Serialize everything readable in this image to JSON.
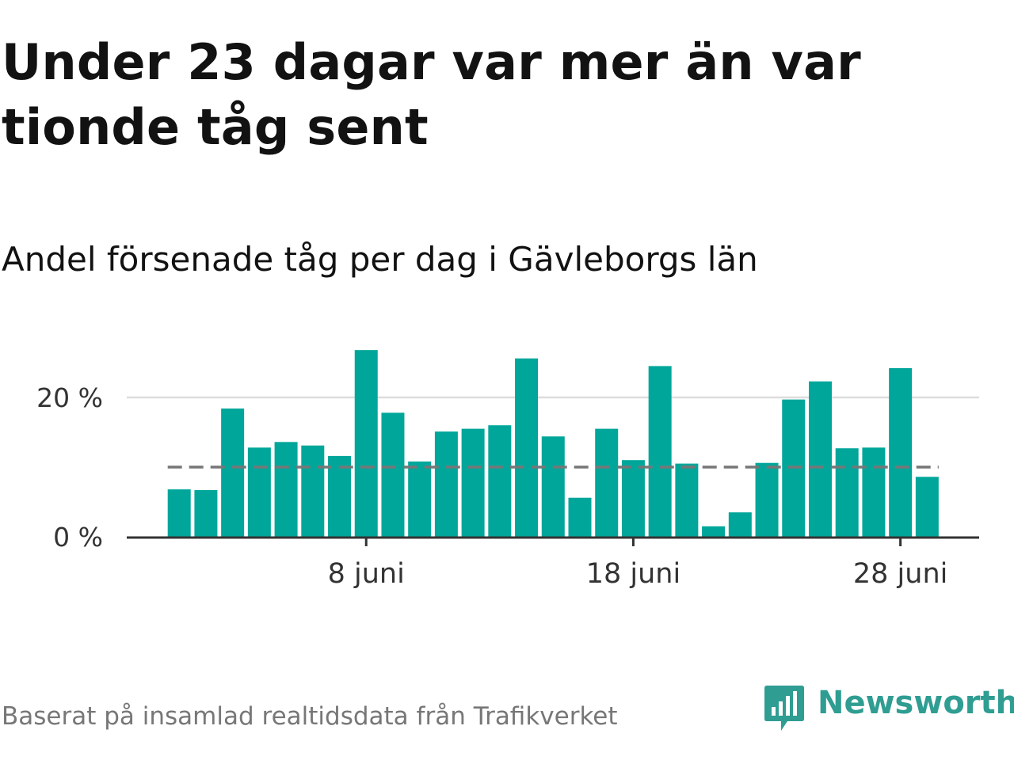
{
  "title": "Under 23 dagar var mer än var tionde tåg sent",
  "subtitle": "Andel försenade tåg per dag i Gävleborgs län",
  "source": "Baserat på insamlad realtidsdata från Trafikverket",
  "brand": {
    "name": "Newsworthy",
    "icon": "newsworthy-chart-bubble-icon",
    "color": "#2f9d92"
  },
  "chart_data": {
    "type": "bar",
    "categories": [
      "1 juni",
      "2 juni",
      "3 juni",
      "4 juni",
      "5 juni",
      "6 juni",
      "7 juni",
      "8 juni",
      "9 juni",
      "10 juni",
      "11 juni",
      "12 juni",
      "13 juni",
      "14 juni",
      "15 juni",
      "16 juni",
      "17 juni",
      "18 juni",
      "19 juni",
      "20 juni",
      "21 juni",
      "22 juni",
      "23 juni",
      "24 juni",
      "25 juni",
      "26 juni",
      "27 juni",
      "28 juni",
      "29 juni"
    ],
    "values": [
      6.8,
      6.7,
      18.4,
      12.8,
      13.6,
      13.1,
      11.6,
      26.8,
      17.8,
      10.8,
      15.1,
      15.5,
      16.0,
      25.6,
      14.4,
      5.6,
      15.5,
      11.0,
      24.5,
      10.5,
      1.5,
      3.5,
      10.6,
      19.7,
      22.3,
      12.7,
      12.8,
      24.2,
      8.6
    ],
    "xticks": [
      "8 juni",
      "18 juni",
      "28 juni"
    ],
    "yticks": [
      0,
      20
    ],
    "ytick_labels": [
      "0 %",
      "20 %"
    ],
    "ylim": [
      0,
      30
    ],
    "reference_line": 10,
    "grid": true,
    "colors": {
      "bar": "#00a69a",
      "reference": "#777777",
      "grid": "#dddddd",
      "axis": "#333333",
      "tick_text": "#333333"
    }
  }
}
